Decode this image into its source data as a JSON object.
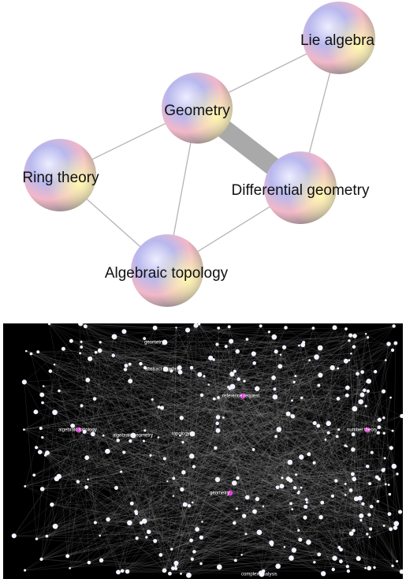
{
  "top_graph": {
    "colors": {
      "edge": "#b4b4b4",
      "strong_edge": "#a9a9a9",
      "label": "#111111"
    },
    "nodes": [
      {
        "id": "geometry",
        "label": "Geometry"
      },
      {
        "id": "lie",
        "label": "Lie algebra"
      },
      {
        "id": "ring",
        "label": "Ring theory"
      },
      {
        "id": "diff",
        "label": "Differential geometry"
      },
      {
        "id": "topo",
        "label": "Algebraic topology"
      }
    ],
    "edges": [
      {
        "from": "geometry",
        "to": "lie",
        "weight": "weak"
      },
      {
        "from": "geometry",
        "to": "ring",
        "weight": "weak"
      },
      {
        "from": "geometry",
        "to": "diff",
        "weight": "strong"
      },
      {
        "from": "geometry",
        "to": "topo",
        "weight": "weak"
      },
      {
        "from": "lie",
        "to": "diff",
        "weight": "weak"
      },
      {
        "from": "ring",
        "to": "topo",
        "weight": "weak"
      },
      {
        "from": "diff",
        "to": "topo",
        "weight": "weak"
      }
    ]
  },
  "bottom_graph": {
    "colors": {
      "background": "#000000",
      "edge": "#9a9a9a",
      "node": "#f2f2ff",
      "hub": "#e040d8"
    },
    "labels": [
      {
        "text": "geometry"
      },
      {
        "text": "abstract algebra"
      },
      {
        "text": "reference request"
      },
      {
        "text": "number theory"
      },
      {
        "text": "algebraic topology"
      },
      {
        "text": "algebraic geometry"
      },
      {
        "text": "topology"
      },
      {
        "text": "geometry"
      },
      {
        "text": "complex analysis"
      }
    ]
  }
}
